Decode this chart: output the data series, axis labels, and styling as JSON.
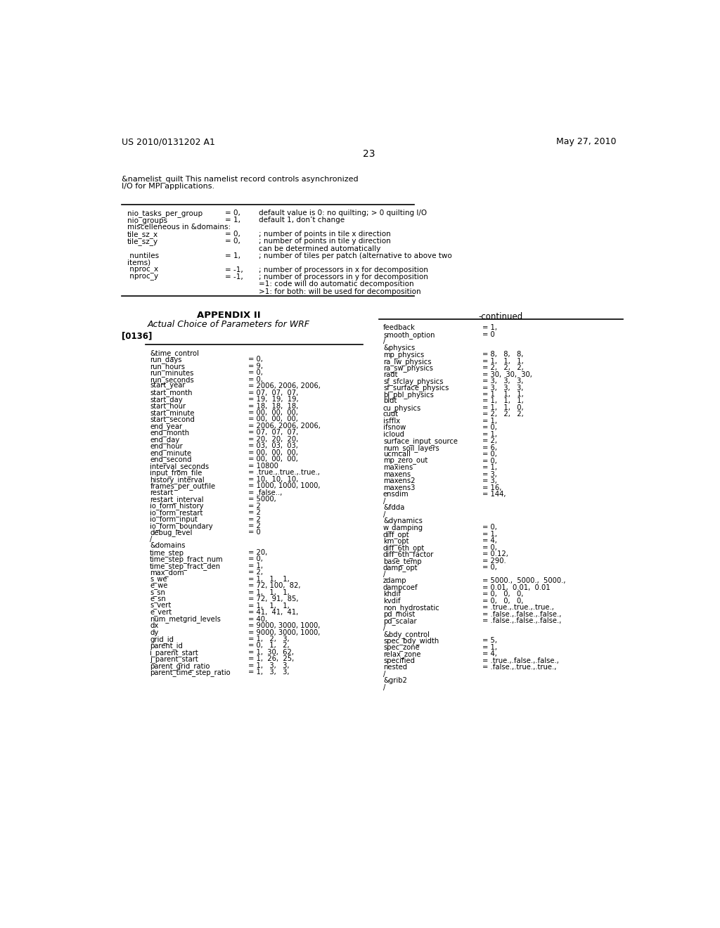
{
  "header_left": "US 2010/0131202 A1",
  "header_right": "May 27, 2010",
  "page_number": "23",
  "background_color": "#ffffff",
  "text_color": "#000000",
  "intro_line1": "&namelist_quilt This namelist record controls asynchronized",
  "intro_line2": "I/O for MPI applications.",
  "table1": [
    {
      "param": "nio_tasks_per_group",
      "val": "= 0,",
      "desc": "default value is 0: no quilting; > 0 quilting I/O"
    },
    {
      "param": "nio_groups",
      "val": "= 1,",
      "desc": "default 1, don’t change"
    },
    {
      "param": "miscelleneous in &domains:",
      "val": "",
      "desc": ""
    },
    {
      "param": "tile_sz_x",
      "val": "= 0,",
      "desc": "; number of points in tile x direction"
    },
    {
      "param": "tile_sz_y",
      "val": "= 0,",
      "desc": "; number of points in tile y direction"
    },
    {
      "param": "",
      "val": "",
      "desc": "can be determined automatically"
    },
    {
      "param": " nuntiles",
      "val": "= 1,",
      "desc": "; number of tiles per patch (alternative to above two"
    },
    {
      "param": "items)",
      "val": "",
      "desc": ""
    },
    {
      "param": " nproc_x",
      "val": "= -1,",
      "desc": "; number of processors in x for decomposition"
    },
    {
      "param": " nproc_y",
      "val": "= -1,",
      "desc": "; number of processors in y for decomposition"
    },
    {
      "param": "",
      "val": "",
      "desc": "=1: code will do automatic decomposition"
    },
    {
      "param": "",
      "val": "",
      "desc": ">1: for both: will be used for decomposition"
    }
  ],
  "appendix_title": "APPENDIX II",
  "appendix_subtitle": "Actual Choice of Parameters for WRF",
  "paragraph_label": "[0136]",
  "continued_label": "-continued",
  "left_col": [
    {
      "p": "&time_control",
      "v": ""
    },
    {
      "p": "run_days",
      "v": "= 0,"
    },
    {
      "p": "run_hours",
      "v": "= 9,"
    },
    {
      "p": "run_minutes",
      "v": "= 0,"
    },
    {
      "p": "run_seconds",
      "v": "= 0,"
    },
    {
      "p": "start_year",
      "v": "= 2006, 2006, 2006,"
    },
    {
      "p": "start_month",
      "v": "= 07,  07,  07,"
    },
    {
      "p": "start_day",
      "v": "= 19,  19,  19,"
    },
    {
      "p": "start_hour",
      "v": "= 18,  18,  18,"
    },
    {
      "p": "start_minute",
      "v": "= 00,  00,  00,"
    },
    {
      "p": "start_second",
      "v": "= 00,  00,  00,"
    },
    {
      "p": "end_year",
      "v": "= 2006, 2006, 2006,"
    },
    {
      "p": "end_month",
      "v": "= 07,  07,  07,"
    },
    {
      "p": "end_day",
      "v": "= 20,  20,  20,"
    },
    {
      "p": "end_hour",
      "v": "= 03,  03,  03,"
    },
    {
      "p": "end_minute",
      "v": "= 00,  00,  00,"
    },
    {
      "p": "end_second",
      "v": "= 00,  00,  00,"
    },
    {
      "p": "interval_seconds",
      "v": "= 10800"
    },
    {
      "p": "input_from_file",
      "v": "= .true.,.true.,.true.,"
    },
    {
      "p": "history_interval",
      "v": "= 10,  10,  10,"
    },
    {
      "p": "frames_per_outfile",
      "v": "= 1000, 1000, 1000,"
    },
    {
      "p": "restart",
      "v": "= .false..,"
    },
    {
      "p": "restart_interval",
      "v": "= 5000,"
    },
    {
      "p": "io_form_history",
      "v": "= 2"
    },
    {
      "p": "io_form_restart",
      "v": "= 2"
    },
    {
      "p": "io_form_input",
      "v": "= 2"
    },
    {
      "p": "io_form_boundary",
      "v": "= 2"
    },
    {
      "p": "debug_level",
      "v": "= 0"
    },
    {
      "p": "/",
      "v": ""
    },
    {
      "p": "&domains",
      "v": ""
    },
    {
      "p": "time_step",
      "v": "= 20,"
    },
    {
      "p": "time_step_fract_num",
      "v": "= 0,"
    },
    {
      "p": "time_step_fract_den",
      "v": "= 1,"
    },
    {
      "p": "max_dom",
      "v": "= 2,"
    },
    {
      "p": "s_we",
      "v": "= 1,   1,   1,"
    },
    {
      "p": "e_we",
      "v": "= 72, 100,  82,"
    },
    {
      "p": "s_sn",
      "v": "= 1,   1,   1,"
    },
    {
      "p": "e_sn",
      "v": "= 72,  91,  85,"
    },
    {
      "p": "s_vert",
      "v": "= 1,   1,   1,"
    },
    {
      "p": "e_vert",
      "v": "= 41,  41,  41,"
    },
    {
      "p": "num_metgrid_levels",
      "v": "= 40,"
    },
    {
      "p": "dx",
      "v": "= 9000, 3000, 1000,"
    },
    {
      "p": "dy",
      "v": "= 9000, 3000, 1000,"
    },
    {
      "p": "grid_id",
      "v": "= 1,   2,   3,"
    },
    {
      "p": "parent_id",
      "v": "= 0,   1,   2,"
    },
    {
      "p": "i_parent_start",
      "v": "= 1,  30,  62,"
    },
    {
      "p": "j_parent_start",
      "v": "= 1,  26,  25,"
    },
    {
      "p": "parent_grid_ratio",
      "v": "= 1,   3,   3,"
    },
    {
      "p": "parent_time_step_ratio",
      "v": "= 1,   3,   3,"
    }
  ],
  "right_col": [
    {
      "p": "feedback",
      "v": "= 1,"
    },
    {
      "p": "smooth_option",
      "v": "= 0"
    },
    {
      "p": "/",
      "v": ""
    },
    {
      "p": "&physics",
      "v": ""
    },
    {
      "p": "mp_physics",
      "v": "= 8,   8,   8,"
    },
    {
      "p": "ra_lw_physics",
      "v": "= 1,   1,   1,"
    },
    {
      "p": "ra_sw_physics",
      "v": "= 2,   2,   2,"
    },
    {
      "p": "radt",
      "v": "= 30,  30,  30,"
    },
    {
      "p": "sf_sfclay_physics",
      "v": "= 3,   3,   3,"
    },
    {
      "p": "sf_surface_physics",
      "v": "= 3,   3,   3,"
    },
    {
      "p": "bl_pbl_physics",
      "v": "= 1    1,   1,"
    },
    {
      "p": "bldt",
      "v": "= 1,   1,   1,"
    },
    {
      "p": "cu_physics",
      "v": "= 1,   1,   0,"
    },
    {
      "p": "cudt",
      "v": "= 2,   2,   2,"
    },
    {
      "p": "isfflx",
      "v": "= 1,"
    },
    {
      "p": "ifsnow",
      "v": "= 0,"
    },
    {
      "p": "icloud",
      "v": "= 1,"
    },
    {
      "p": "surface_input_source",
      "v": "= 2,"
    },
    {
      "p": "num_soil_layers",
      "v": "= 6,"
    },
    {
      "p": "ucmcall",
      "v": "= 0,"
    },
    {
      "p": "mp_zero_out",
      "v": "= 0,"
    },
    {
      "p": "maxiens",
      "v": "= 1,"
    },
    {
      "p": "maxens",
      "v": "= 3,"
    },
    {
      "p": "maxens2",
      "v": "= 3,"
    },
    {
      "p": "maxens3",
      "v": "= 16,"
    },
    {
      "p": "ensdim",
      "v": "= 144,"
    },
    {
      "p": "/",
      "v": ""
    },
    {
      "p": "&fdda",
      "v": ""
    },
    {
      "p": "/",
      "v": ""
    },
    {
      "p": "&dynamics",
      "v": ""
    },
    {
      "p": "w_damping",
      "v": "= 0,"
    },
    {
      "p": "diff_opt",
      "v": "= 1,"
    },
    {
      "p": "km_opt",
      "v": "= 4,"
    },
    {
      "p": "diff_6th_opt",
      "v": "= 0,"
    },
    {
      "p": "diff_6th_factor",
      "v": "= 0.12,"
    },
    {
      "p": "base_temp",
      "v": "= 290."
    },
    {
      "p": "damp_opt",
      "v": "= 0,"
    },
    {
      "p": "/",
      "v": ""
    },
    {
      "p": "zdamp",
      "v": "= 5000.,  5000.,  5000.,"
    },
    {
      "p": "dampcoef",
      "v": "= 0.01,  0.01,  0.01"
    },
    {
      "p": "khdif",
      "v": "= 0,   0,   0,"
    },
    {
      "p": "kvdif",
      "v": "= 0,   0,   0,"
    },
    {
      "p": "non_hydrostatic",
      "v": "= .true.,.true.,.true.,"
    },
    {
      "p": "pd_moist",
      "v": "= .false.,.false.,.false.,"
    },
    {
      "p": "pd_scalar",
      "v": "= .false.,.false.,.false.,"
    },
    {
      "p": "/",
      "v": ""
    },
    {
      "p": "&bdy_control",
      "v": ""
    },
    {
      "p": "spec_bdy_width",
      "v": "= 5,"
    },
    {
      "p": "spec_zone",
      "v": "= 1,"
    },
    {
      "p": "relax_zone",
      "v": "= 4,"
    },
    {
      "p": "specified",
      "v": "= .true.,.false.,.false.,"
    },
    {
      "p": "nested",
      "v": "= .false.,.true.,.true.,"
    },
    {
      "p": "/",
      "v": ""
    },
    {
      "p": "&grib2",
      "v": ""
    },
    {
      "p": "/",
      "v": ""
    }
  ]
}
